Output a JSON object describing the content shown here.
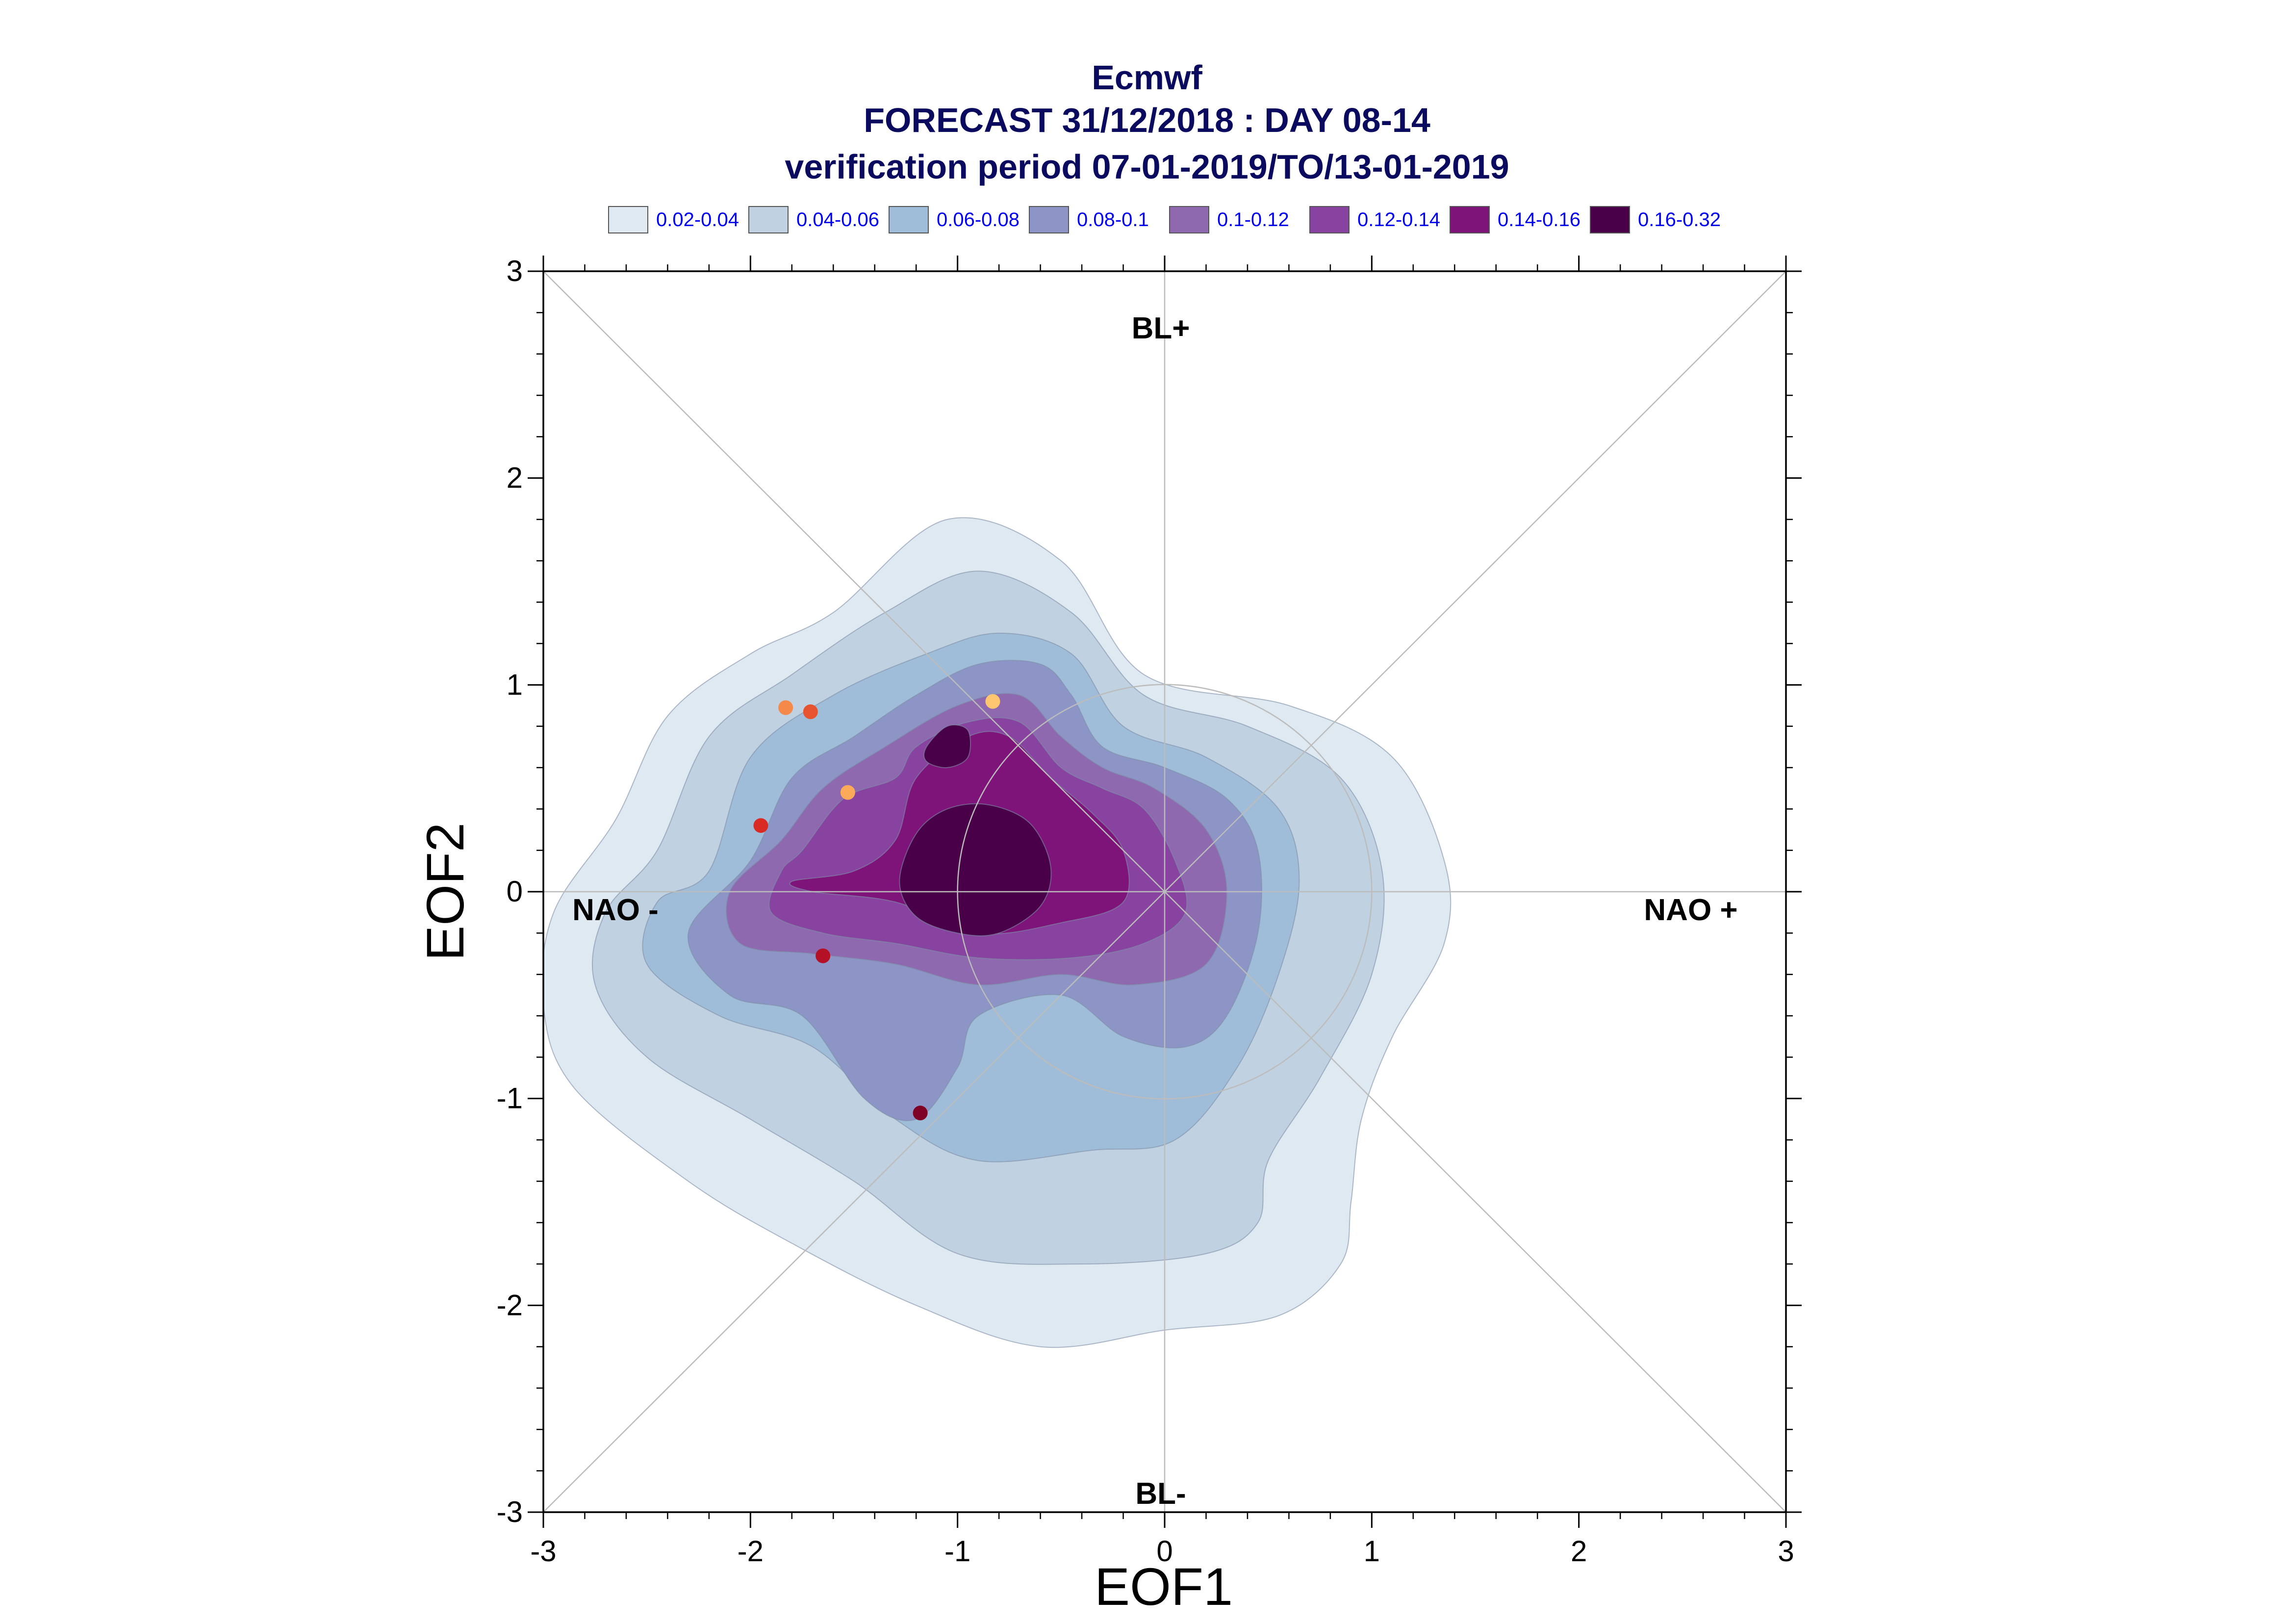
{
  "title": {
    "line1": "Ecmwf",
    "line2": "FORECAST 31/12/2018 : DAY 08-14",
    "line3": "verification period 07-01-2019/TO/13-01-2019"
  },
  "legend": [
    {
      "label": "0.02-0.04",
      "color": "#dfe9f1"
    },
    {
      "label": "0.04-0.06",
      "color": "#c0d2e2"
    },
    {
      "label": "0.06-0.08",
      "color": "#9fbdd8"
    },
    {
      "label": "0.08-0.1",
      "color": "#8c95c6"
    },
    {
      "label": "0.1-0.12",
      "color": "#8e69b0"
    },
    {
      "label": "0.12-0.14",
      "color": "#87439f"
    },
    {
      "label": "0.14-0.16",
      "color": "#7e137a"
    },
    {
      "label": "0.16-0.32",
      "color": "#4a0048"
    }
  ],
  "regime_labels": {
    "top": "BL+",
    "bottom": "BL-",
    "left": "NAO -",
    "right": "NAO +"
  },
  "chart_data": {
    "type": "scatter",
    "title": "Ecmwf",
    "xlabel": "EOF1",
    "ylabel": "EOF2",
    "xlim": [
      -3,
      3
    ],
    "ylim": [
      -3,
      3
    ],
    "xticks": [
      "-3",
      "-2",
      "-1",
      "0",
      "1",
      "2",
      "3"
    ],
    "yticks": [
      "3",
      "2",
      "1",
      "0",
      "-1",
      "-2",
      "-3"
    ],
    "unit_circle": {
      "center": [
        0,
        0
      ],
      "radius": 1
    },
    "diagonals": true,
    "density_levels": [
      0.02,
      0.04,
      0.06,
      0.08,
      0.1,
      0.12,
      0.14,
      0.16,
      0.32
    ],
    "density_contours": [
      {
        "level": "0.02-0.04",
        "points": [
          [
            -2.65,
            0.35
          ],
          [
            -2.4,
            0.85
          ],
          [
            -2.0,
            1.15
          ],
          [
            -1.6,
            1.35
          ],
          [
            -1.05,
            1.8
          ],
          [
            -0.5,
            1.6
          ],
          [
            -0.1,
            1.05
          ],
          [
            0.6,
            0.9
          ],
          [
            1.1,
            0.65
          ],
          [
            1.35,
            0.15
          ],
          [
            1.35,
            -0.25
          ],
          [
            1.1,
            -0.7
          ],
          [
            0.95,
            -1.1
          ],
          [
            0.9,
            -1.5
          ],
          [
            0.85,
            -1.8
          ],
          [
            0.55,
            -2.05
          ],
          [
            0.0,
            -2.12
          ],
          [
            -0.6,
            -2.2
          ],
          [
            -1.2,
            -2.0
          ],
          [
            -1.8,
            -1.7
          ],
          [
            -2.3,
            -1.4
          ],
          [
            -2.85,
            -0.95
          ],
          [
            -3.0,
            -0.55
          ],
          [
            -2.95,
            -0.1
          ]
        ]
      },
      {
        "level": "0.04-0.06",
        "points": [
          [
            -2.45,
            0.2
          ],
          [
            -2.2,
            0.75
          ],
          [
            -1.8,
            1.05
          ],
          [
            -1.35,
            1.35
          ],
          [
            -0.9,
            1.55
          ],
          [
            -0.45,
            1.35
          ],
          [
            -0.1,
            0.95
          ],
          [
            0.4,
            0.8
          ],
          [
            0.85,
            0.55
          ],
          [
            1.05,
            0.1
          ],
          [
            1.0,
            -0.4
          ],
          [
            0.75,
            -0.9
          ],
          [
            0.5,
            -1.3
          ],
          [
            0.45,
            -1.6
          ],
          [
            0.2,
            -1.75
          ],
          [
            -0.4,
            -1.8
          ],
          [
            -1.0,
            -1.75
          ],
          [
            -1.5,
            -1.4
          ],
          [
            -2.0,
            -1.1
          ],
          [
            -2.5,
            -0.8
          ],
          [
            -2.75,
            -0.45
          ],
          [
            -2.7,
            -0.1
          ]
        ]
      },
      {
        "level": "0.06-0.08",
        "points": [
          [
            -2.2,
            0.1
          ],
          [
            -2.0,
            0.65
          ],
          [
            -1.6,
            0.95
          ],
          [
            -1.15,
            1.15
          ],
          [
            -0.8,
            1.25
          ],
          [
            -0.45,
            1.15
          ],
          [
            -0.2,
            0.8
          ],
          [
            0.2,
            0.65
          ],
          [
            0.55,
            0.4
          ],
          [
            0.65,
            0.05
          ],
          [
            0.55,
            -0.4
          ],
          [
            0.35,
            -0.85
          ],
          [
            0.05,
            -1.2
          ],
          [
            -0.35,
            -1.25
          ],
          [
            -0.9,
            -1.3
          ],
          [
            -1.3,
            -1.1
          ],
          [
            -1.7,
            -0.75
          ],
          [
            -2.15,
            -0.6
          ],
          [
            -2.5,
            -0.35
          ],
          [
            -2.45,
            -0.05
          ]
        ]
      },
      {
        "level": "0.08-0.1",
        "points": [
          [
            -2.0,
            0.15
          ],
          [
            -1.8,
            0.55
          ],
          [
            -1.5,
            0.75
          ],
          [
            -1.2,
            0.95
          ],
          [
            -0.9,
            1.1
          ],
          [
            -0.6,
            1.1
          ],
          [
            -0.45,
            0.95
          ],
          [
            -0.3,
            0.7
          ],
          [
            0.0,
            0.6
          ],
          [
            0.3,
            0.45
          ],
          [
            0.45,
            0.2
          ],
          [
            0.45,
            -0.2
          ],
          [
            0.3,
            -0.6
          ],
          [
            0.1,
            -0.75
          ],
          [
            -0.2,
            -0.7
          ],
          [
            -0.5,
            -0.5
          ],
          [
            -0.9,
            -0.6
          ],
          [
            -1.0,
            -0.85
          ],
          [
            -1.2,
            -1.1
          ],
          [
            -1.45,
            -1.0
          ],
          [
            -1.75,
            -0.6
          ],
          [
            -2.1,
            -0.5
          ],
          [
            -2.3,
            -0.2
          ]
        ]
      },
      {
        "level": "0.1-0.12",
        "points": [
          [
            -1.85,
            0.25
          ],
          [
            -1.65,
            0.5
          ],
          [
            -1.35,
            0.7
          ],
          [
            -1.0,
            0.9
          ],
          [
            -0.7,
            0.95
          ],
          [
            -0.5,
            0.75
          ],
          [
            -0.3,
            0.6
          ],
          [
            -0.05,
            0.5
          ],
          [
            0.2,
            0.3
          ],
          [
            0.3,
            0.0
          ],
          [
            0.2,
            -0.35
          ],
          [
            -0.15,
            -0.45
          ],
          [
            -0.5,
            -0.4
          ],
          [
            -0.9,
            -0.45
          ],
          [
            -1.3,
            -0.35
          ],
          [
            -1.7,
            -0.3
          ],
          [
            -2.05,
            -0.25
          ],
          [
            -2.1,
            0.0
          ]
        ]
      },
      {
        "level": "0.12-0.14",
        "points": [
          [
            -1.75,
            0.2
          ],
          [
            -1.55,
            0.45
          ],
          [
            -1.3,
            0.55
          ],
          [
            -1.2,
            0.7
          ],
          [
            -0.95,
            0.82
          ],
          [
            -0.7,
            0.82
          ],
          [
            -0.5,
            0.6
          ],
          [
            -0.3,
            0.5
          ],
          [
            -0.1,
            0.4
          ],
          [
            0.05,
            0.15
          ],
          [
            0.1,
            -0.1
          ],
          [
            -0.1,
            -0.25
          ],
          [
            -0.45,
            -0.32
          ],
          [
            -0.9,
            -0.32
          ],
          [
            -1.3,
            -0.25
          ],
          [
            -1.65,
            -0.2
          ],
          [
            -1.9,
            -0.1
          ],
          [
            -1.85,
            0.1
          ]
        ]
      },
      {
        "level": "0.14-0.16",
        "points": [
          [
            -1.5,
            0.1
          ],
          [
            -1.3,
            0.25
          ],
          [
            -1.2,
            0.55
          ],
          [
            -0.95,
            0.75
          ],
          [
            -0.75,
            0.75
          ],
          [
            -0.55,
            0.55
          ],
          [
            -0.35,
            0.38
          ],
          [
            -0.2,
            0.2
          ],
          [
            -0.2,
            -0.05
          ],
          [
            -0.5,
            -0.15
          ],
          [
            -0.9,
            -0.2
          ],
          [
            -1.3,
            -0.05
          ],
          [
            -1.7,
            0.0
          ],
          [
            -1.8,
            0.05
          ]
        ]
      },
      {
        "level": "0.16-0.32",
        "points": [
          [
            -1.28,
            0.05
          ],
          [
            -1.2,
            0.28
          ],
          [
            -1.05,
            0.4
          ],
          [
            -0.85,
            0.42
          ],
          [
            -0.65,
            0.33
          ],
          [
            -0.55,
            0.12
          ],
          [
            -0.6,
            -0.07
          ],
          [
            -0.8,
            -0.2
          ],
          [
            -1.0,
            -0.2
          ],
          [
            -1.2,
            -0.12
          ]
        ]
      },
      {
        "level": "0.16-0.32",
        "points": [
          [
            -1.15,
            0.7
          ],
          [
            -1.05,
            0.8
          ],
          [
            -0.95,
            0.78
          ],
          [
            -0.95,
            0.65
          ],
          [
            -1.05,
            0.6
          ],
          [
            -1.15,
            0.63
          ]
        ]
      }
    ],
    "members": [
      {
        "x": -1.83,
        "y": 0.89,
        "color": "#f4894a"
      },
      {
        "x": -1.71,
        "y": 0.87,
        "color": "#e8532f"
      },
      {
        "x": -0.83,
        "y": 0.92,
        "color": "#fdc66f"
      },
      {
        "x": -1.53,
        "y": 0.48,
        "color": "#fcaa5a"
      },
      {
        "x": -1.95,
        "y": 0.32,
        "color": "#d92b23"
      },
      {
        "x": -1.65,
        "y": -0.31,
        "color": "#b41126"
      },
      {
        "x": -1.18,
        "y": -1.07,
        "color": "#7e0024"
      }
    ]
  },
  "colors": {
    "title": "#0a0a5e",
    "legend_text": "#0000ee",
    "axis": "#000000",
    "guide_lines": "#bcbcbc"
  }
}
